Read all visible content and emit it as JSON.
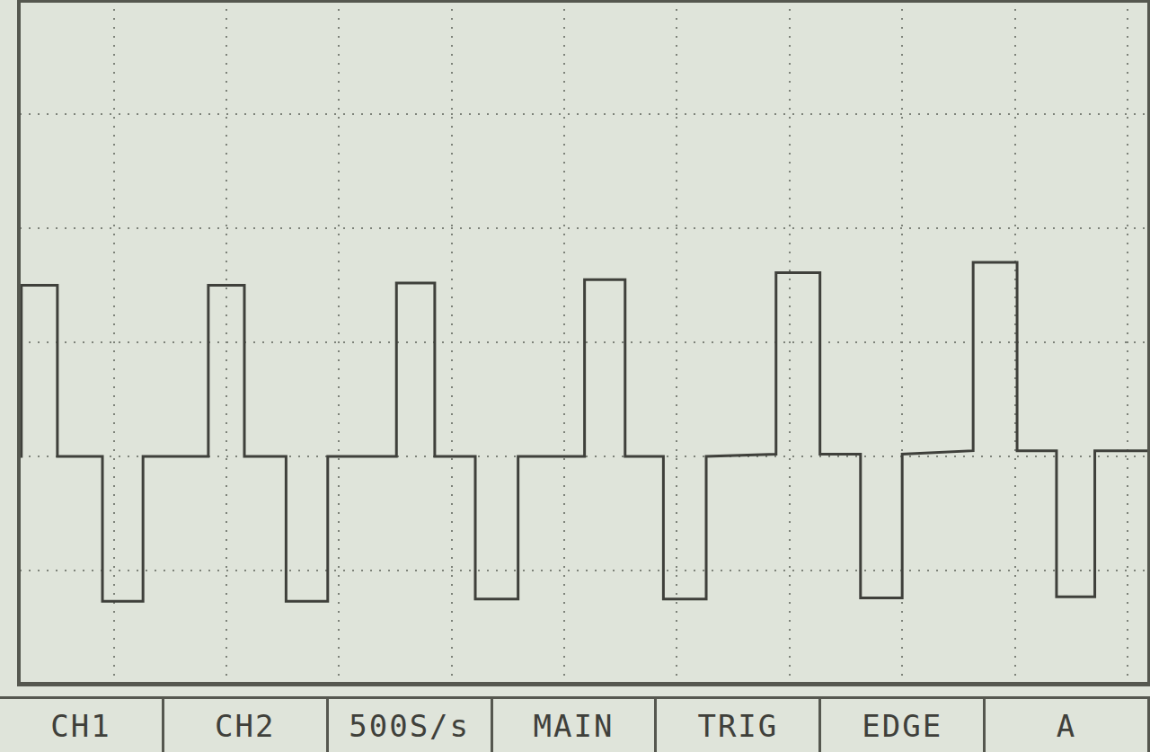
{
  "chart_data": {
    "type": "line",
    "x": [
      -4.85,
      -4.82,
      -4.82,
      -4.5,
      -4.5,
      -4.1,
      -4.1,
      -3.74,
      -3.74,
      -3.16,
      -3.16,
      -2.84,
      -2.84,
      -2.47,
      -2.47,
      -2.1,
      -2.1,
      -1.49,
      -1.49,
      -1.15,
      -1.15,
      -0.79,
      -0.79,
      -0.41,
      -0.41,
      0.18,
      0.18,
      0.54,
      0.54,
      0.88,
      0.88,
      1.26,
      1.26,
      1.88,
      1.88,
      2.27,
      2.27,
      2.63,
      2.63,
      3.0,
      3.0,
      3.63,
      3.63,
      4.02,
      4.02,
      4.37,
      4.37,
      4.71,
      4.71,
      5.2
    ],
    "values": [
      -2.0,
      -2.0,
      -0.5,
      -0.5,
      -2.0,
      -2.0,
      -3.27,
      -3.27,
      -2.0,
      -2.0,
      -0.5,
      -0.5,
      -2.0,
      -2.0,
      -3.27,
      -3.27,
      -2.0,
      -2.0,
      -0.48,
      -0.48,
      -2.0,
      -2.0,
      -3.25,
      -3.25,
      -2.0,
      -2.0,
      -0.45,
      -0.45,
      -2.0,
      -2.0,
      -3.25,
      -3.25,
      -2.0,
      -1.98,
      -0.39,
      -0.39,
      -1.98,
      -1.98,
      -3.24,
      -3.24,
      -1.98,
      -1.95,
      -0.3,
      -0.3,
      -1.95,
      -1.95,
      -3.23,
      -3.23,
      -1.95,
      -1.95
    ],
    "color": "#3f403b",
    "xlim": [
      -4.85,
      5.2
    ],
    "xticks": [
      -4,
      -3,
      -2,
      -1,
      0,
      1,
      2,
      3,
      4,
      5
    ],
    "ylim": [
      -4,
      2
    ],
    "yticks": [
      -4,
      -3,
      -2,
      -1,
      0,
      1,
      2
    ],
    "grid": true,
    "tick_labels": false,
    "annotations": [
      "CH1",
      "CH2",
      "500S/s",
      "MAIN",
      "TRIG",
      "EDGE",
      "A"
    ]
  }
}
